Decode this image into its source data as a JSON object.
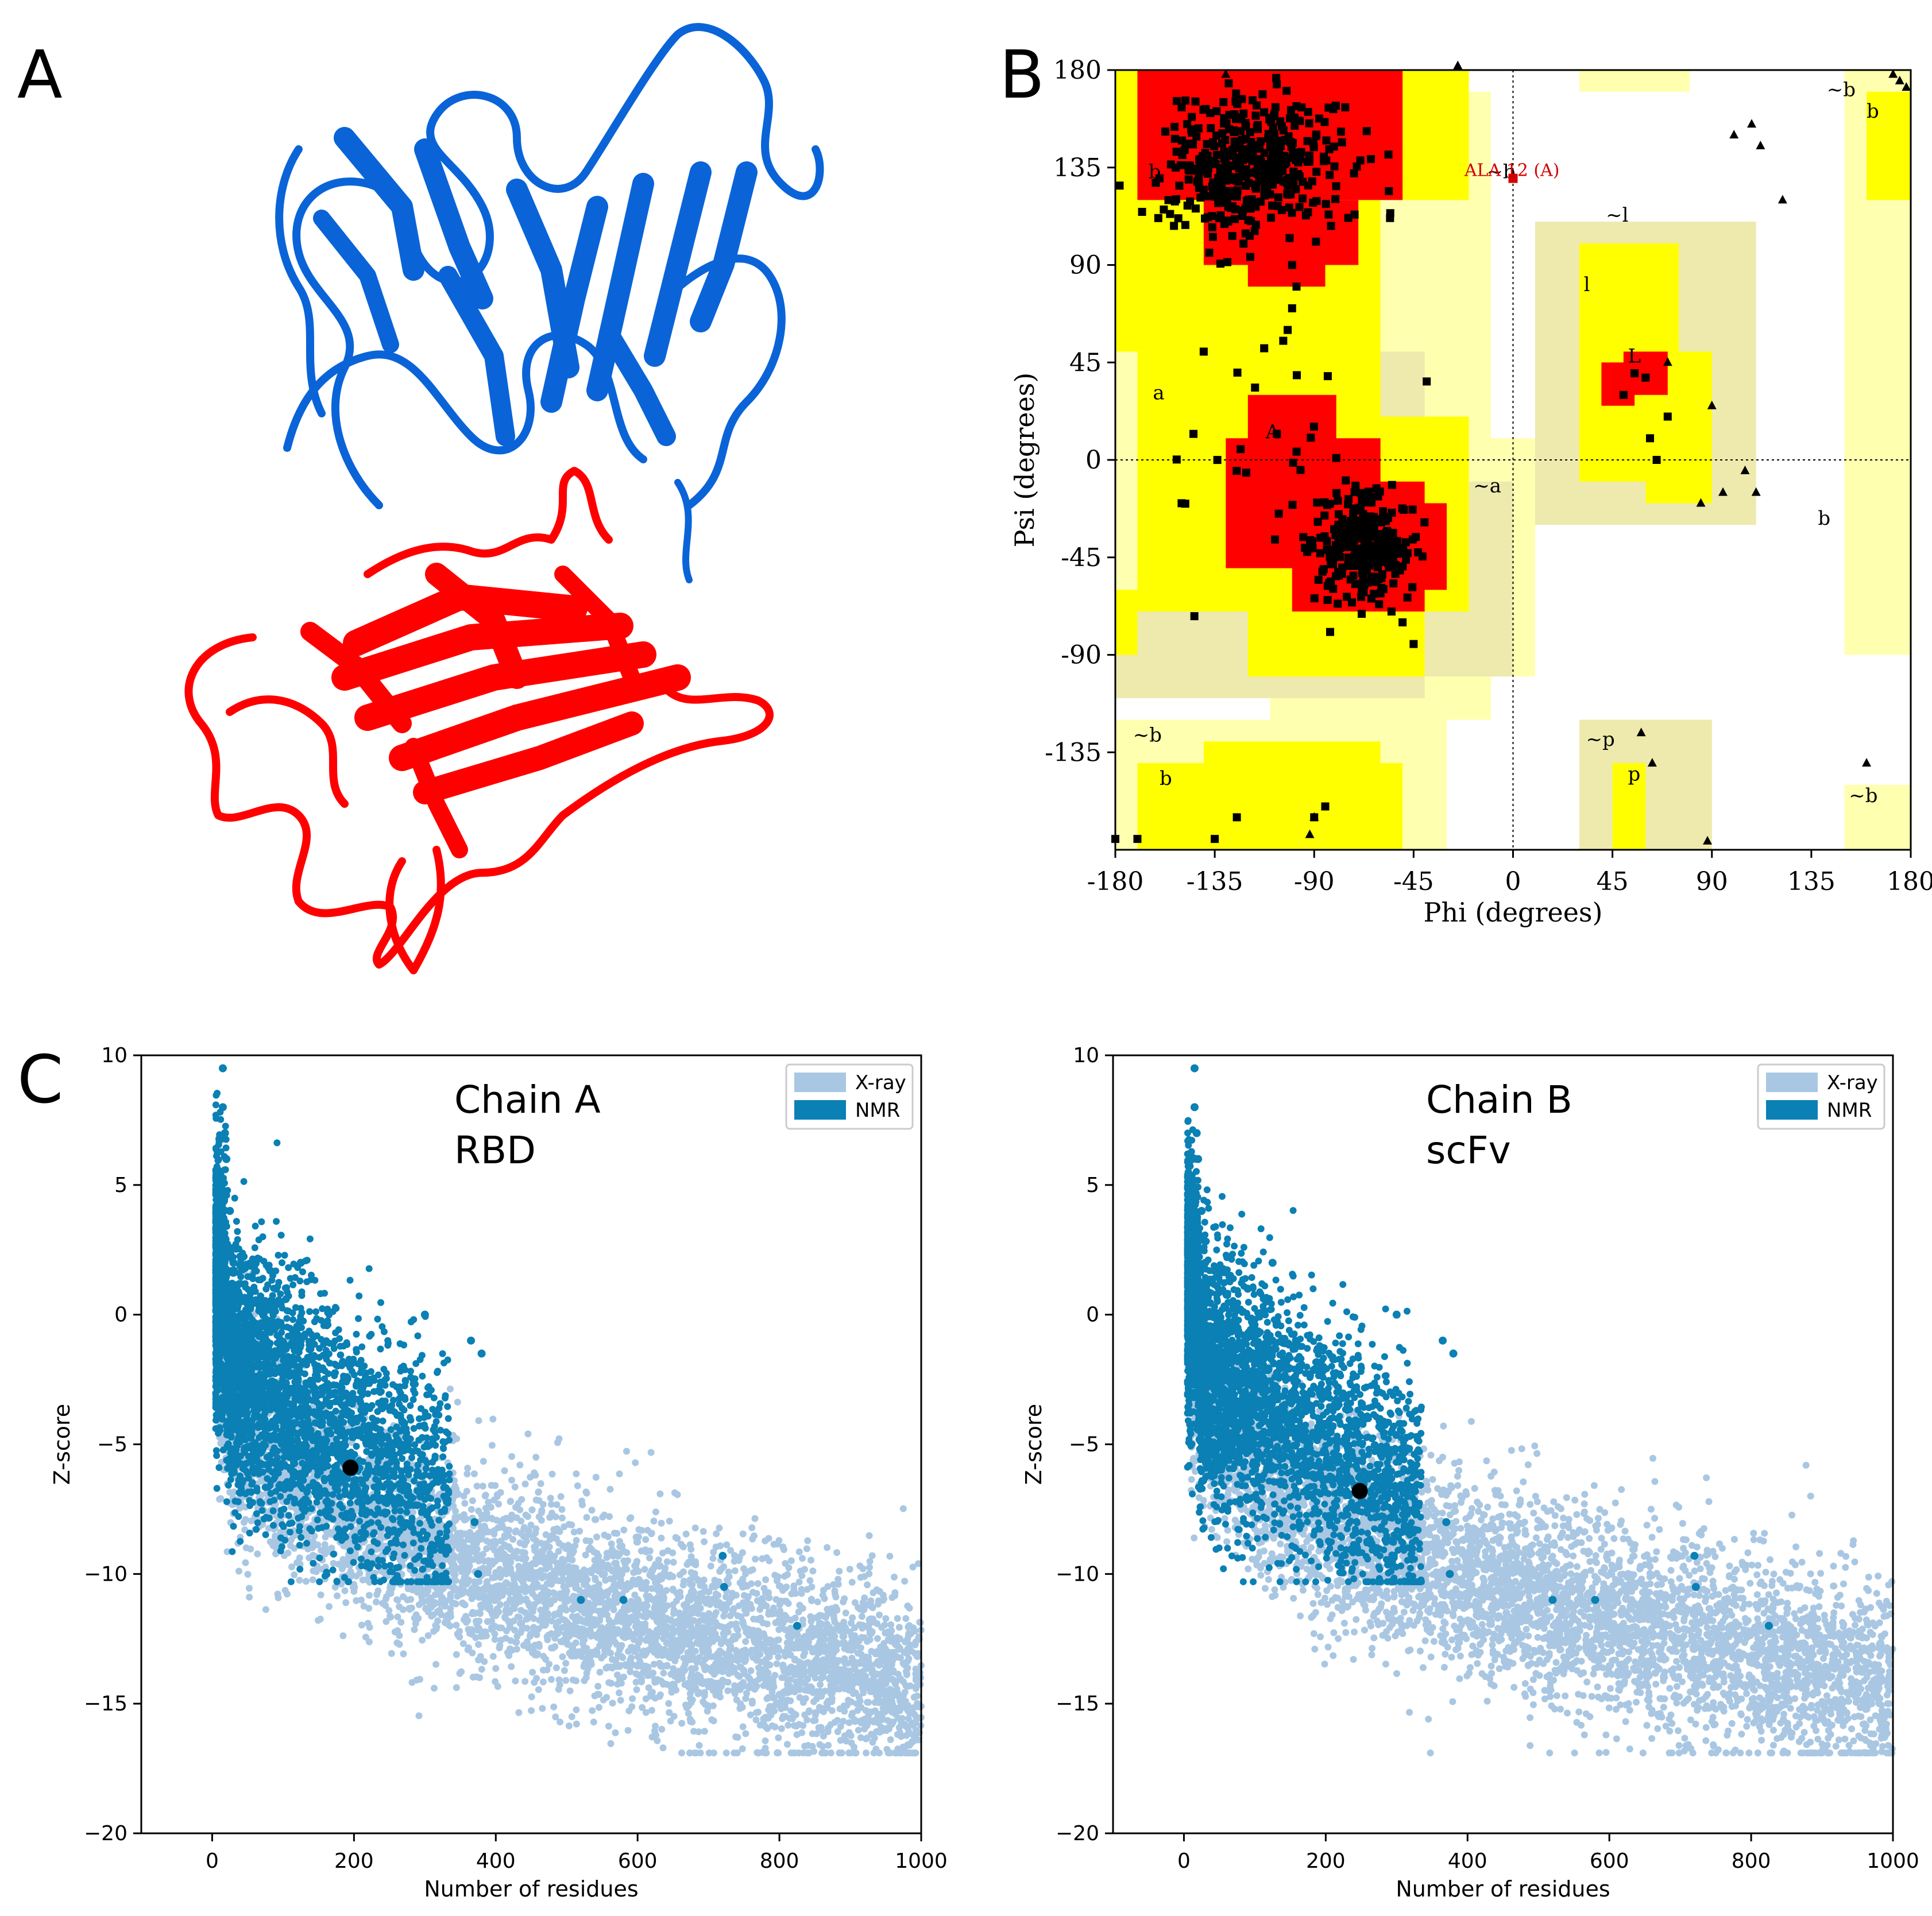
{
  "panels": {
    "A": {
      "label": "A"
    },
    "B": {
      "label": "B"
    },
    "C": {
      "label": "C"
    }
  },
  "structure": {
    "chain_colors": {
      "scfv": "#0a64d8",
      "rbd": "#ff0000"
    }
  },
  "ramachandran": {
    "x_label": "Phi (degrees)",
    "y_label": "Psi (degrees)",
    "x_ticks": [
      "-180",
      "-135",
      "-90",
      "-45",
      "0",
      "45",
      "90",
      "135",
      "180"
    ],
    "y_ticks": [
      "180",
      "135",
      "90",
      "45",
      "0",
      "-45",
      "-90",
      "-135"
    ],
    "outlier_label": "ALA 12 (A)",
    "region_labels": [
      "b",
      "~b",
      "~l",
      "l",
      "a",
      "A",
      "~a",
      "L",
      "~b",
      "b",
      "~p",
      "p",
      "b",
      "~b",
      "~b",
      "b"
    ],
    "colors": {
      "core": "#ff0000",
      "allowed": "#ffff00",
      "generous": "#ffffb0",
      "generous2": "#eeeaae",
      "outlier": "#d40000"
    }
  },
  "chart_data": [
    {
      "type": "scatter",
      "title": "Chain A",
      "subtitle": "RBD",
      "xlabel": "Number of residues",
      "ylabel": "Z-score",
      "xlim": [
        -100,
        1000
      ],
      "ylim": [
        -20,
        10
      ],
      "x_ticks": [
        "0",
        "200",
        "400",
        "600",
        "800",
        "1000"
      ],
      "y_ticks": [
        "10",
        "5",
        "0",
        "−5",
        "−10",
        "−15",
        "−20"
      ],
      "legend": [
        "X-ray",
        "NMR"
      ],
      "legend_position": "top-right",
      "series": [
        {
          "name": "X-ray",
          "color": "#a9c7e2"
        },
        {
          "name": "NMR",
          "color": "#0a80b4"
        }
      ],
      "highlight": {
        "x": 195,
        "y": -5.9
      }
    },
    {
      "type": "scatter",
      "title": "Chain B",
      "subtitle": "scFv",
      "xlabel": "Number of residues",
      "ylabel": "Z-score",
      "xlim": [
        -100,
        1000
      ],
      "ylim": [
        -20,
        10
      ],
      "x_ticks": [
        "0",
        "200",
        "400",
        "600",
        "800",
        "1000"
      ],
      "y_ticks": [
        "10",
        "5",
        "0",
        "−5",
        "−10",
        "−15",
        "−20"
      ],
      "legend": [
        "X-ray",
        "NMR"
      ],
      "legend_position": "top-right",
      "series": [
        {
          "name": "X-ray",
          "color": "#a9c7e2"
        },
        {
          "name": "NMR",
          "color": "#0a80b4"
        }
      ],
      "highlight": {
        "x": 248,
        "y": -6.8
      }
    }
  ]
}
